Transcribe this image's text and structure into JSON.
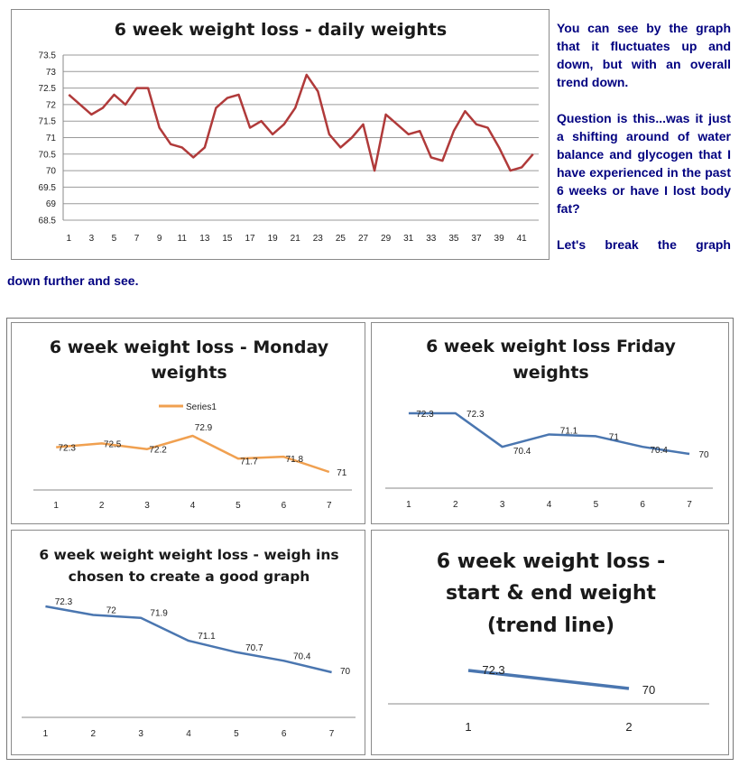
{
  "paragraphs": {
    "p1": "You can see by the graph that it fluctuates up and down, but with an overall trend down.",
    "p2": "Question is this...was it just a shifting around of water balance and glycogen that I have experienced in the past 6 weeks or have I lost body fat?",
    "p3": "Let's break the graph",
    "p3_cont": "down further and see."
  },
  "chart_data": [
    {
      "type": "line",
      "title": "6 week weight loss - daily weights",
      "color": "#b03a3a",
      "x": [
        1,
        2,
        3,
        4,
        5,
        6,
        7,
        8,
        9,
        10,
        11,
        12,
        13,
        14,
        15,
        16,
        17,
        18,
        19,
        20,
        21,
        22,
        23,
        24,
        25,
        26,
        27,
        28,
        29,
        30,
        31,
        32,
        33,
        34,
        35,
        36,
        37,
        38,
        39,
        40,
        41,
        42
      ],
      "values": [
        72.3,
        72.0,
        71.7,
        71.9,
        72.3,
        72.0,
        72.5,
        72.5,
        71.3,
        70.8,
        70.7,
        70.4,
        70.7,
        71.9,
        72.2,
        72.3,
        71.3,
        71.5,
        71.1,
        71.4,
        71.9,
        72.9,
        72.4,
        71.1,
        70.7,
        71.0,
        71.4,
        70.0,
        71.7,
        71.4,
        71.1,
        71.2,
        70.4,
        70.3,
        71.2,
        71.8,
        71.4,
        71.3,
        70.7,
        70.0,
        70.1,
        70.5
      ],
      "xtick_labels": [
        "1",
        "3",
        "5",
        "7",
        "9",
        "11",
        "13",
        "15",
        "17",
        "19",
        "21",
        "23",
        "25",
        "27",
        "29",
        "31",
        "33",
        "35",
        "37",
        "39",
        "41"
      ],
      "ylim": [
        68.5,
        73.5
      ],
      "ytick_labels": [
        "68.5",
        "69",
        "69.5",
        "70",
        "70.5",
        "71",
        "71.5",
        "72",
        "72.5",
        "73",
        "73.5"
      ],
      "grid": true
    },
    {
      "type": "line",
      "title": "6 week weight loss - Monday weights",
      "title_lines": [
        "6 week weight loss - Monday",
        "weights"
      ],
      "color": "#f0a050",
      "legend": "Series1",
      "legend_position": "top",
      "categories": [
        "1",
        "2",
        "3",
        "4",
        "5",
        "6",
        "7"
      ],
      "values": [
        72.3,
        72.5,
        72.2,
        72.9,
        71.7,
        71.8,
        71
      ],
      "labels": [
        "72.3",
        "72.5",
        "72.2",
        "72.9",
        "71.7",
        "71.8",
        "71"
      ]
    },
    {
      "type": "line",
      "title": "6 week weight loss Friday weights",
      "title_lines": [
        "6 week weight loss Friday",
        "weights"
      ],
      "color": "#4a76b0",
      "categories": [
        "1",
        "2",
        "3",
        "4",
        "5",
        "6",
        "7"
      ],
      "values": [
        72.3,
        72.3,
        70.4,
        71.1,
        71,
        70.4,
        70
      ],
      "labels": [
        "72.3",
        "72.3",
        "70.4",
        "71.1",
        "71",
        "70.4",
        "70"
      ]
    },
    {
      "type": "line",
      "title": "6 week weight weight loss - weigh ins chosen to create a good graph",
      "title_lines": [
        "6 week weight weight loss - weigh ins",
        "chosen to create a good graph"
      ],
      "color": "#4a76b0",
      "categories": [
        "1",
        "2",
        "3",
        "4",
        "5",
        "6",
        "7"
      ],
      "values": [
        72.3,
        72,
        71.9,
        71.1,
        70.7,
        70.4,
        70
      ],
      "labels": [
        "72.3",
        "72",
        "71.9",
        "71.1",
        "70.7",
        "70.4",
        "70"
      ]
    },
    {
      "type": "line",
      "title": "6 week weight loss - start & end weight (trend line)",
      "title_lines": [
        "6 week weight loss -",
        "start & end weight",
        "(trend line)"
      ],
      "color": "#4a76b0",
      "categories": [
        "1",
        "2"
      ],
      "values": [
        72.3,
        70
      ],
      "labels": [
        "72.3",
        "70"
      ]
    }
  ]
}
